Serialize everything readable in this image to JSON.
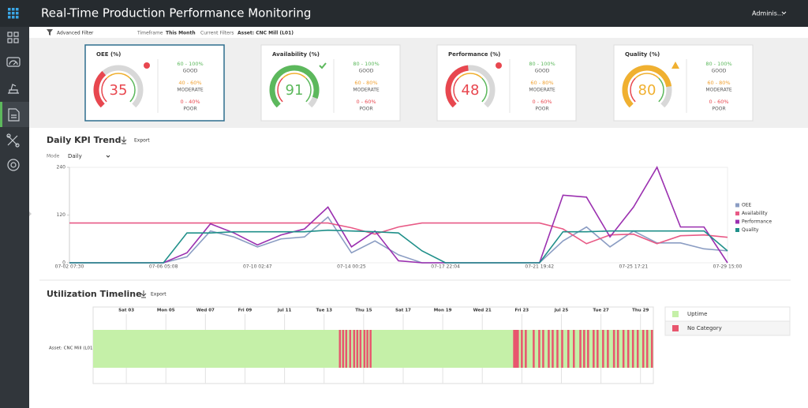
{
  "header": {
    "title": "Real-Time Production Performance Monitoring",
    "user": "Adminis..."
  },
  "filters": {
    "advanced": "Advanced Filter",
    "timeframe_label": "Timeframe",
    "timeframe": "This Month",
    "current_label": "Current Filters",
    "current": "Asset: CNC Mill (L01)"
  },
  "kpis": [
    {
      "name": "OEE (%)",
      "value": 35,
      "color": "#e8474f",
      "ranges": [
        {
          "range": "60 - 100%",
          "label": "GOOD"
        },
        {
          "range": "40 - 60%",
          "label": "MODERATE"
        },
        {
          "range": "0 - 40%",
          "label": "POOR"
        }
      ]
    },
    {
      "name": "Availability (%)",
      "value": 91,
      "color": "#5cb85c",
      "ranges": [
        {
          "range": "80 - 100%",
          "label": "GOOD"
        },
        {
          "range": "60 - 80%",
          "label": "MODERATE"
        },
        {
          "range": "0 - 60%",
          "label": "POOR"
        }
      ]
    },
    {
      "name": "Performance (%)",
      "value": 48,
      "color": "#e8474f",
      "ranges": [
        {
          "range": "80 - 100%",
          "label": "GOOD"
        },
        {
          "range": "60 - 80%",
          "label": "MODERATE"
        },
        {
          "range": "0 - 60%",
          "label": "POOR"
        }
      ]
    },
    {
      "name": "Quality (%)",
      "value": 80,
      "color": "#f0b030",
      "ranges": [
        {
          "range": "80 - 100%",
          "label": "GOOD"
        },
        {
          "range": "60 - 80%",
          "label": "MODERATE"
        },
        {
          "range": "0 - 60%",
          "label": "POOR"
        }
      ]
    }
  ],
  "trend": {
    "type": "line",
    "title": "Daily KPI Trend",
    "export": "Export",
    "mode_label": "Mode",
    "mode": "Daily",
    "categories": [
      "07-02 07:30",
      null,
      null,
      null,
      "07-06 05:08",
      null,
      null,
      null,
      "07-10 02:47",
      null,
      null,
      null,
      "07-14 00:25",
      null,
      null,
      null,
      "07-17 22:04",
      null,
      null,
      null,
      "07-21 19:42",
      null,
      null,
      null,
      "07-25 17:21",
      null,
      null,
      null,
      "07-29 15:00"
    ],
    "ylim": [
      0,
      240
    ],
    "yticks": [
      0,
      120,
      240
    ],
    "series": [
      {
        "name": "OEE",
        "color": "#8b9dc3",
        "values": [
          0,
          0,
          0,
          0,
          0,
          15,
          80,
          65,
          40,
          60,
          65,
          115,
          25,
          55,
          20,
          0,
          0,
          0,
          0,
          0,
          0,
          55,
          90,
          40,
          80,
          50,
          50,
          35,
          30
        ]
      },
      {
        "name": "Availability",
        "color": "#e85a86",
        "values": [
          100,
          100,
          100,
          100,
          100,
          100,
          100,
          100,
          100,
          100,
          100,
          100,
          88,
          72,
          90,
          100,
          100,
          100,
          100,
          100,
          100,
          85,
          48,
          70,
          72,
          48,
          68,
          70,
          64
        ]
      },
      {
        "name": "Performance",
        "color": "#9b30b0",
        "values": [
          0,
          0,
          0,
          0,
          0,
          25,
          98,
          75,
          45,
          70,
          85,
          140,
          40,
          80,
          5,
          0,
          0,
          0,
          0,
          0,
          0,
          170,
          165,
          65,
          140,
          240,
          90,
          90,
          0
        ]
      },
      {
        "name": "Quality",
        "color": "#20908a",
        "values": [
          0,
          0,
          0,
          0,
          0,
          75,
          75,
          78,
          78,
          78,
          78,
          82,
          80,
          78,
          75,
          30,
          0,
          0,
          0,
          0,
          0,
          78,
          78,
          80,
          80,
          80,
          80,
          80,
          30
        ]
      }
    ]
  },
  "timeline": {
    "title": "Utilization Timeline",
    "export": "Export",
    "row_label": "Asset: CNC Mill (L01)",
    "xlim": [
      1.32,
      29.65
    ],
    "xticks": [
      {
        "value": 3,
        "label": "Sat 03"
      },
      {
        "value": 5,
        "label": "Mon 05"
      },
      {
        "value": 7,
        "label": "Wed 07"
      },
      {
        "value": 9,
        "label": "Fri 09"
      },
      {
        "value": 11,
        "label": "Jul 11"
      },
      {
        "value": 13,
        "label": "Tue 13"
      },
      {
        "value": 15,
        "label": "Thu 15"
      },
      {
        "value": 17,
        "label": "Sat 17"
      },
      {
        "value": 19,
        "label": "Mon 19"
      },
      {
        "value": 21,
        "label": "Wed 21"
      },
      {
        "value": 23,
        "label": "Fri 23"
      },
      {
        "value": 25,
        "label": "Jul 25"
      },
      {
        "value": 27,
        "label": "Tue 27"
      },
      {
        "value": 29,
        "label": "Thu 29"
      }
    ],
    "uptime": {
      "name": "Uptime",
      "color": "#c5f0a8"
    },
    "no_category": {
      "name": "No Category",
      "color": "#e8566e",
      "intervals": [
        [
          13.75,
          13.85
        ],
        [
          13.91,
          14.01
        ],
        [
          14.07,
          14.17
        ],
        [
          14.27,
          14.37
        ],
        [
          14.47,
          14.57
        ],
        [
          14.63,
          14.73
        ],
        [
          14.79,
          14.89
        ],
        [
          14.99,
          15.09
        ],
        [
          15.14,
          15.24
        ],
        [
          15.3,
          15.4
        ],
        [
          22.56,
          22.8
        ],
        [
          22.75,
          22.85
        ],
        [
          22.95,
          23.05
        ],
        [
          23.15,
          23.25
        ],
        [
          23.55,
          23.65
        ],
        [
          23.83,
          23.93
        ],
        [
          24.03,
          24.13
        ],
        [
          24.31,
          24.41
        ],
        [
          24.51,
          24.61
        ],
        [
          24.75,
          24.85
        ],
        [
          24.99,
          25.09
        ],
        [
          25.3,
          25.4
        ],
        [
          25.58,
          25.68
        ],
        [
          25.91,
          26.01
        ],
        [
          26.1,
          26.2
        ],
        [
          26.3,
          26.4
        ],
        [
          26.58,
          26.68
        ],
        [
          26.78,
          26.88
        ],
        [
          27.06,
          27.16
        ],
        [
          27.3,
          27.4
        ],
        [
          27.61,
          27.71
        ],
        [
          27.81,
          27.91
        ],
        [
          28.09,
          28.19
        ],
        [
          28.33,
          28.43
        ],
        [
          28.57,
          28.67
        ],
        [
          28.81,
          28.91
        ],
        [
          29.09,
          29.19
        ],
        [
          29.29,
          29.39
        ],
        [
          29.53,
          29.63
        ]
      ]
    }
  }
}
